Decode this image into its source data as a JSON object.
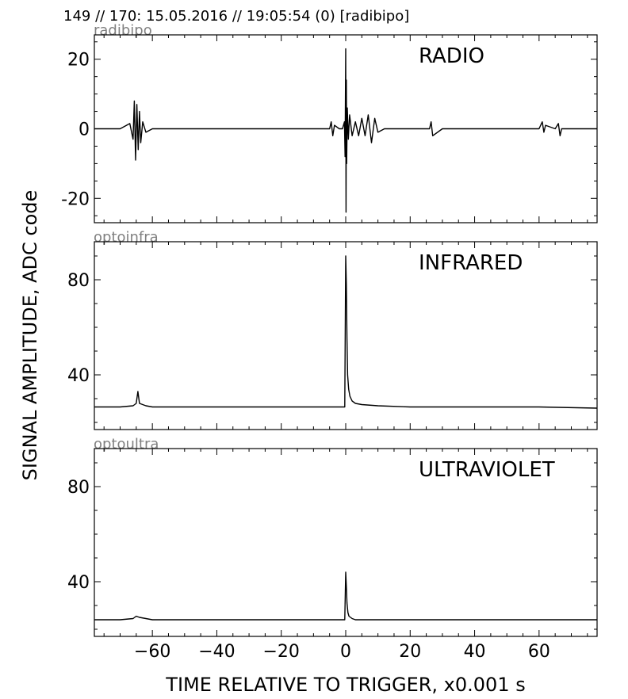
{
  "header": {
    "title": "149 // 170:   15.05.2016 // 19:05:54 (0)  [radibipo]"
  },
  "axes": {
    "xlabel": "TIME RELATIVE TO TRIGGER,   x0.001 s",
    "ylabel": "SIGNAL AMPLITUDE,  ADC code"
  },
  "chart_data": [
    {
      "type": "line",
      "id": "radio",
      "channel_label": "radibipo",
      "title": "RADIO",
      "xlim": [
        -78,
        78
      ],
      "ylim": [
        -27,
        27
      ],
      "xticks": [
        -60,
        -40,
        -20,
        0,
        20,
        40,
        60
      ],
      "xtick_labels": [
        "−60",
        "−40",
        "−20",
        "0",
        "20",
        "40",
        "60"
      ],
      "yticks": [
        20,
        0,
        -20
      ],
      "ytick_labels": [
        "20",
        "0",
        "-20"
      ],
      "x": [
        -78,
        -70,
        -67,
        -66,
        -65.6,
        -65.2,
        -64.8,
        -64.4,
        -64,
        -63.6,
        -63,
        -62,
        -60,
        -50,
        -40,
        -30,
        -20,
        -10,
        -5,
        -4.5,
        -4,
        -3.5,
        -2,
        -1,
        -0.4,
        -0.2,
        0,
        0.1,
        0.2,
        0.3,
        0.5,
        0.8,
        1.2,
        2,
        3,
        4,
        5,
        6,
        7,
        8,
        9,
        10,
        12,
        15,
        20,
        26,
        26.5,
        27,
        30,
        40,
        50,
        60,
        61,
        61.5,
        62,
        65,
        66,
        66.5,
        67,
        70,
        78
      ],
      "y": [
        0,
        0,
        1.5,
        -3,
        8,
        -9,
        7,
        -6,
        5,
        -4,
        2,
        -1,
        0,
        0,
        0,
        0,
        0,
        0,
        0,
        2,
        -2,
        1,
        0,
        0,
        2,
        -8,
        23,
        -24,
        14,
        -10,
        6,
        -3,
        4,
        -2,
        2,
        -2,
        3,
        -2,
        4,
        -4,
        3,
        -1,
        0,
        0,
        0,
        0,
        2,
        -2,
        0,
        0,
        0,
        0,
        2,
        -1,
        1,
        0,
        1.5,
        -2,
        0,
        0,
        0
      ]
    },
    {
      "type": "line",
      "id": "infrared",
      "channel_label": "optoinfra",
      "title": "INFRARED",
      "xlim": [
        -78,
        78
      ],
      "ylim": [
        17,
        96
      ],
      "xticks": [
        -60,
        -40,
        -20,
        0,
        20,
        40,
        60
      ],
      "yticks": [
        80,
        40
      ],
      "ytick_labels": [
        "80",
        "40"
      ],
      "x": [
        -78,
        -70,
        -66,
        -65,
        -64.5,
        -64,
        -62,
        -60,
        -50,
        -40,
        -20,
        -5,
        -1,
        -0.3,
        0,
        0.2,
        0.4,
        0.6,
        0.9,
        1.3,
        2,
        3,
        5,
        10,
        20,
        40,
        60,
        78
      ],
      "y": [
        26.5,
        26.5,
        27,
        28,
        33,
        28,
        27,
        26.5,
        26.5,
        26.5,
        26.5,
        26.5,
        26.5,
        26.5,
        90,
        78,
        55,
        40,
        34,
        31,
        29,
        28,
        27.5,
        27,
        26.5,
        26.5,
        26.5,
        26
      ]
    },
    {
      "type": "line",
      "id": "ultraviolet",
      "channel_label": "optoultra",
      "title": "ULTRAVIOLET",
      "xlim": [
        -78,
        78
      ],
      "ylim": [
        17,
        96
      ],
      "xticks": [
        -60,
        -40,
        -20,
        0,
        20,
        40,
        60
      ],
      "yticks": [
        80,
        40
      ],
      "ytick_labels": [
        "80",
        "40"
      ],
      "x": [
        -78,
        -70,
        -66,
        -65,
        -64,
        -60,
        -40,
        -20,
        -5,
        -1,
        -0.3,
        0,
        0.2,
        0.4,
        0.7,
        1,
        1.5,
        2,
        3,
        10,
        20,
        40,
        60,
        78
      ],
      "y": [
        24,
        24,
        24.5,
        25.5,
        25,
        24,
        24,
        24,
        24,
        24,
        24,
        44,
        38,
        31,
        27,
        25.5,
        25,
        24.5,
        24,
        24,
        24,
        24,
        24,
        24
      ]
    }
  ]
}
